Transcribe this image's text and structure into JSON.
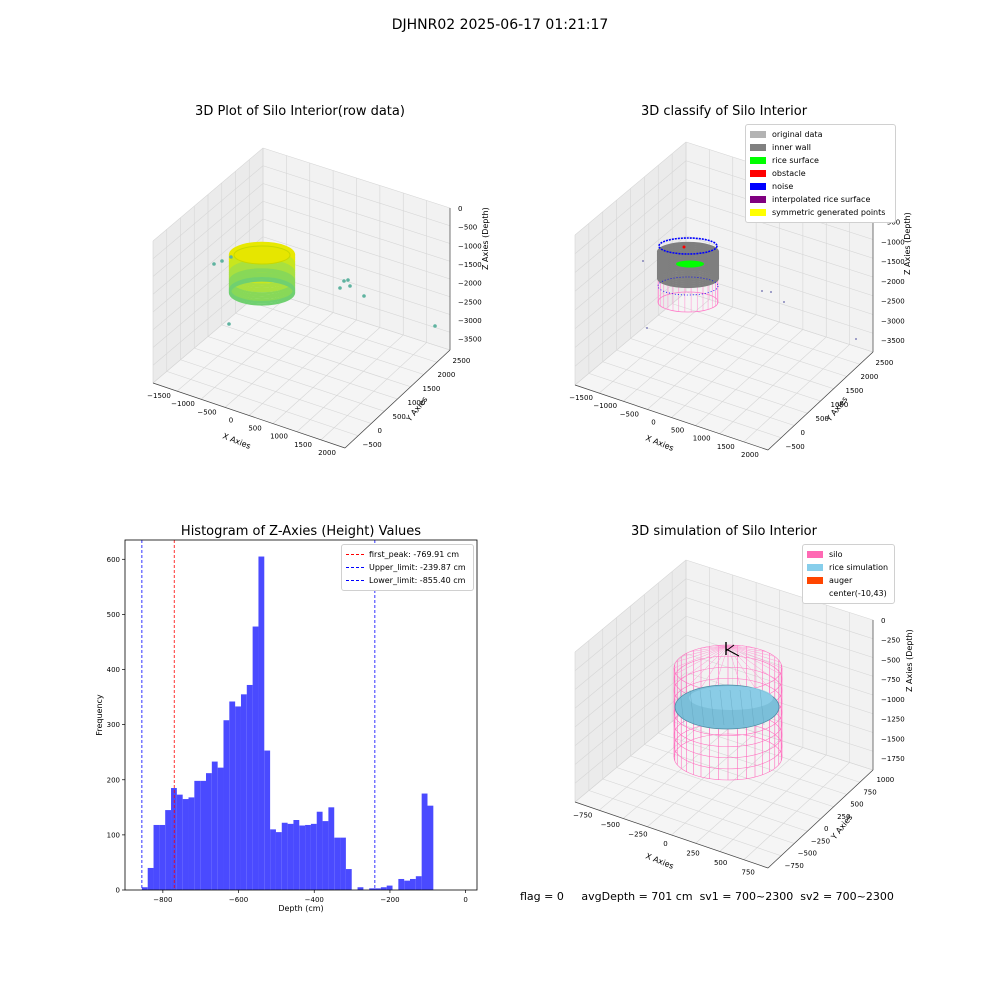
{
  "suptitle": "DJHNR02 2025-06-17 01:21:17",
  "panels": {
    "raw": {
      "title": "3D Plot of Silo Interior(row data)",
      "xlabel": "X Axies",
      "ylabel": "Y Axies",
      "zlabel": "Z Axies (Depth)",
      "xticks": [
        "−1500",
        "−1000",
        "−500",
        "0",
        "500",
        "1000",
        "1500",
        "2000"
      ],
      "yticks": [
        "−500",
        "0",
        "500",
        "1000",
        "1500",
        "2000",
        "2500"
      ],
      "zticks": [
        "0",
        "−500",
        "−1000",
        "−1500",
        "−2000",
        "−2500",
        "−3000",
        "−3500"
      ]
    },
    "classify": {
      "title": "3D classify of Silo Interior",
      "xlabel": "X Axies",
      "ylabel": "Y Axies",
      "zlabel": "Z Axies (Depth)",
      "xticks": [
        "−1500",
        "−1000",
        "−500",
        "0",
        "500",
        "1000",
        "1500",
        "2000"
      ],
      "yticks": [
        "−500",
        "0",
        "500",
        "1000",
        "1500",
        "2000",
        "2500"
      ],
      "zticks": [
        "0",
        "−500",
        "−1000",
        "−1500",
        "−2000",
        "−2500",
        "−3000",
        "−3500"
      ],
      "legend": [
        {
          "label": "original data",
          "color": "#b3b3b3"
        },
        {
          "label": "inner wall",
          "color": "#808080"
        },
        {
          "label": "rice surface",
          "color": "#00ff00"
        },
        {
          "label": "obstacle",
          "color": "#ff0000"
        },
        {
          "label": "noise",
          "color": "#0000ff"
        },
        {
          "label": "interpolated rice surface",
          "color": "#800080"
        },
        {
          "label": "symmetric generated points",
          "color": "#ffff00"
        }
      ]
    },
    "simulation": {
      "title": "3D simulation of Silo Interior",
      "xlabel": "X Axies",
      "ylabel": "Y Axies",
      "zlabel": "Z Axies (Depth)",
      "xticks": [
        "−750",
        "−500",
        "−250",
        "0",
        "250",
        "500",
        "750"
      ],
      "yticks": [
        "−750",
        "−500",
        "−250",
        "0",
        "250",
        "500",
        "750",
        "1000"
      ],
      "zticks": [
        "0",
        "−250",
        "−500",
        "−750",
        "−1000",
        "−1250",
        "−1500",
        "−1750"
      ],
      "legend": [
        {
          "label": "silo",
          "color": "#ff69b4"
        },
        {
          "label": "rice simulation",
          "color": "#87ceeb"
        },
        {
          "label": "auger",
          "color": "#ff4500"
        },
        {
          "label": "center(-10,43)",
          "color": "#ffffff"
        }
      ]
    }
  },
  "footer": {
    "flag": "flag = 0",
    "avg": "avgDepth = 701 cm",
    "sv1": "sv1 = 700~2300",
    "sv2": "sv2 = 700~2300"
  },
  "chart_data": [
    {
      "type": "bar",
      "title": "Histogram of Z-Axies (Height) Values",
      "xlabel": "Depth (cm)",
      "ylabel": "Frequency",
      "bin_start": -855.4,
      "bin_width": 15.4,
      "values": [
        5,
        40,
        118,
        118,
        145,
        185,
        173,
        165,
        168,
        198,
        198,
        212,
        233,
        222,
        308,
        342,
        333,
        355,
        372,
        478,
        605,
        253,
        110,
        105,
        122,
        120,
        127,
        117,
        118,
        120,
        142,
        125,
        150,
        95,
        95,
        38,
        0,
        5,
        0,
        3,
        3,
        5,
        8,
        0,
        20,
        17,
        20,
        25,
        175,
        153
      ],
      "xlim": [
        -900,
        30
      ],
      "ylim": [
        0,
        635
      ],
      "xticks": [
        -800,
        -600,
        -400,
        -200,
        0
      ],
      "xtick_labels": [
        "−800",
        "−600",
        "−400",
        "−200",
        "0"
      ],
      "yticks": [
        0,
        100,
        200,
        300,
        400,
        500,
        600
      ],
      "bar_color": "#4a4aff",
      "lines": [
        {
          "name": "first_peak: -769.91 cm",
          "x": -769.91,
          "color": "#ff0000"
        },
        {
          "name": "Upper_limit: -239.87 cm",
          "x": -239.87,
          "color": "#0000ff"
        },
        {
          "name": "Lower_limit: -855.40 cm",
          "x": -855.4,
          "color": "#0000ff"
        }
      ],
      "legend_position": "upper-right"
    }
  ]
}
